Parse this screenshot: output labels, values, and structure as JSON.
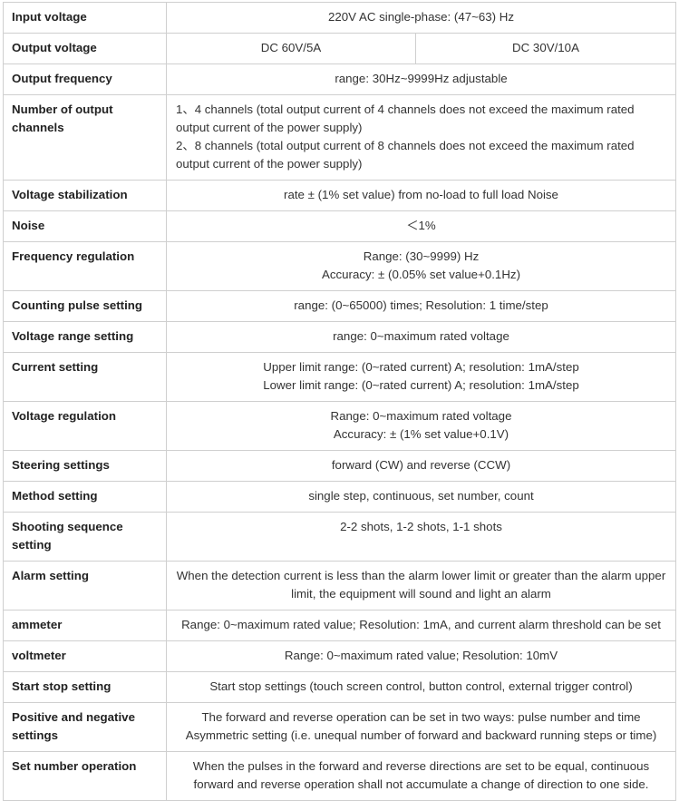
{
  "rows": [
    {
      "label": "Input voltage",
      "lines": [
        "220V AC single-phase: (47~63) Hz"
      ]
    },
    {
      "label": "Output voltage",
      "split": [
        "DC 60V/5A",
        "DC 30V/10A"
      ]
    },
    {
      "label": "Output frequency",
      "lines": [
        "range: 30Hz~9999Hz adjustable"
      ]
    },
    {
      "label": "Number of output channels",
      "align": "left",
      "lines": [
        "1、4 channels (total output current of 4 channels does not exceed the maximum rated output current of the power supply)",
        "2、8 channels (total output current of 8 channels does not exceed the maximum rated output current of the power supply)"
      ]
    },
    {
      "label": "Voltage stabilization",
      "lines": [
        "rate ± (1% set value) from no-load to full load Noise"
      ]
    },
    {
      "label": "Noise",
      "lines": [
        "＜1%"
      ]
    },
    {
      "label": "Frequency regulation",
      "lines": [
        "Range: (30~9999) Hz",
        "Accuracy: ± (0.05% set value+0.1Hz)"
      ]
    },
    {
      "label": "Counting pulse setting",
      "lines": [
        "range: (0~65000) times; Resolution: 1 time/step"
      ]
    },
    {
      "label": "Voltage range setting",
      "lines": [
        "range: 0~maximum rated voltage"
      ]
    },
    {
      "label": "Current setting",
      "lines": [
        "Upper limit range: (0~rated current) A; resolution: 1mA/step",
        "Lower limit range: (0~rated current) A; resolution: 1mA/step"
      ]
    },
    {
      "label": "Voltage regulation",
      "lines": [
        "Range: 0~maximum rated voltage",
        "Accuracy: ± (1% set value+0.1V)"
      ]
    },
    {
      "label": "Steering settings",
      "lines": [
        "forward (CW) and reverse (CCW)"
      ]
    },
    {
      "label": "Method setting",
      "lines": [
        "single step, continuous, set number, count"
      ]
    },
    {
      "label": "Shooting sequence setting",
      "lines": [
        "2-2 shots, 1-2 shots, 1-1 shots"
      ]
    },
    {
      "label": "Alarm setting",
      "lines": [
        "When the detection current is less than the alarm lower limit or greater than the alarm upper limit, the equipment will sound and light an alarm"
      ]
    },
    {
      "label": "ammeter",
      "lines": [
        "Range: 0~maximum rated value; Resolution: 1mA, and current alarm threshold can be set"
      ]
    },
    {
      "label": "voltmeter",
      "lines": [
        "Range: 0~maximum rated value; Resolution: 10mV"
      ]
    },
    {
      "label": "Start stop setting",
      "lines": [
        "Start stop settings (touch screen control, button control, external trigger control)"
      ]
    },
    {
      "label": "Positive and negative settings",
      "lines": [
        "The forward and reverse operation can be set in two ways: pulse number and time",
        "Asymmetric setting (i.e. unequal number of forward and backward running steps or time)"
      ]
    },
    {
      "label": "Set number operation",
      "lines": [
        "When the pulses in the forward and reverse directions are set to be equal, continuous forward and reverse operation shall not accumulate a change of direction to one side."
      ]
    }
  ]
}
